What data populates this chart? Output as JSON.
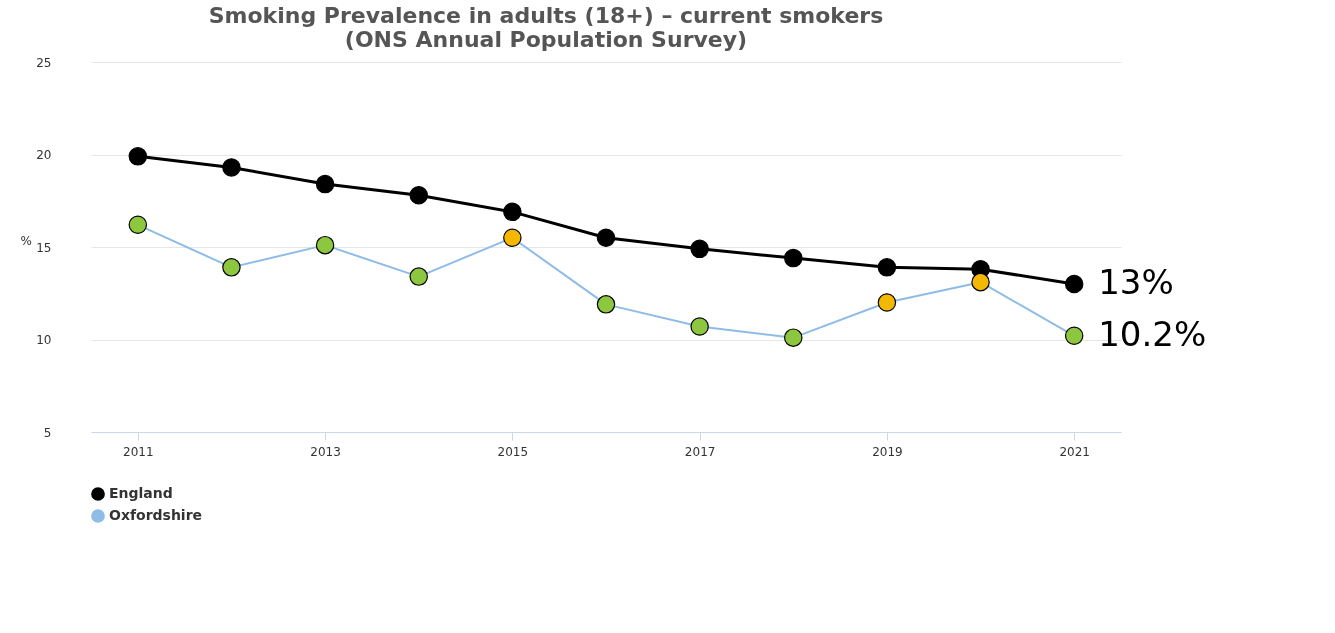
{
  "chart_data": {
    "type": "line",
    "title": "Smoking Prevalence in adults (18+) – current smokers",
    "subtitle": "(ONS Annual Population Survey)",
    "ylabel": "%",
    "x": [
      2011,
      2012,
      2013,
      2014,
      2015,
      2016,
      2017,
      2018,
      2019,
      2020,
      2021
    ],
    "series": [
      {
        "name": "England",
        "color": "#000000",
        "values": [
          19.9,
          19.3,
          18.4,
          17.8,
          16.9,
          15.5,
          14.9,
          14.4,
          13.9,
          13.8,
          13.0
        ]
      },
      {
        "name": "Oxfordshire",
        "color": "#8fbce6",
        "values": [
          16.2,
          13.9,
          15.1,
          13.4,
          15.5,
          11.9,
          10.7,
          10.1,
          12.0,
          13.1,
          10.2
        ],
        "colors": [
          "#8dc63f",
          "#8dc63f",
          "#8dc63f",
          "#8dc63f",
          "#f5b800",
          "#8dc63f",
          "#8dc63f",
          "#8dc63f",
          "#f5b800",
          "#f5b800",
          "#8dc63f"
        ]
      }
    ],
    "annotations": [
      {
        "text": "13%",
        "x": 2021,
        "y": 13.0
      },
      {
        "text": "10.2%",
        "x": 2021,
        "y": 10.2
      }
    ],
    "xlim": [
      2010.5,
      2021.5
    ],
    "xticks": [
      2011,
      2013,
      2015,
      2017,
      2019,
      2021
    ],
    "ylim": [
      5,
      25
    ],
    "yticks": [
      5,
      10,
      15,
      20,
      25
    ],
    "grid": "y",
    "legend": "bottom",
    "marker": "circle",
    "line_style": "solid"
  }
}
